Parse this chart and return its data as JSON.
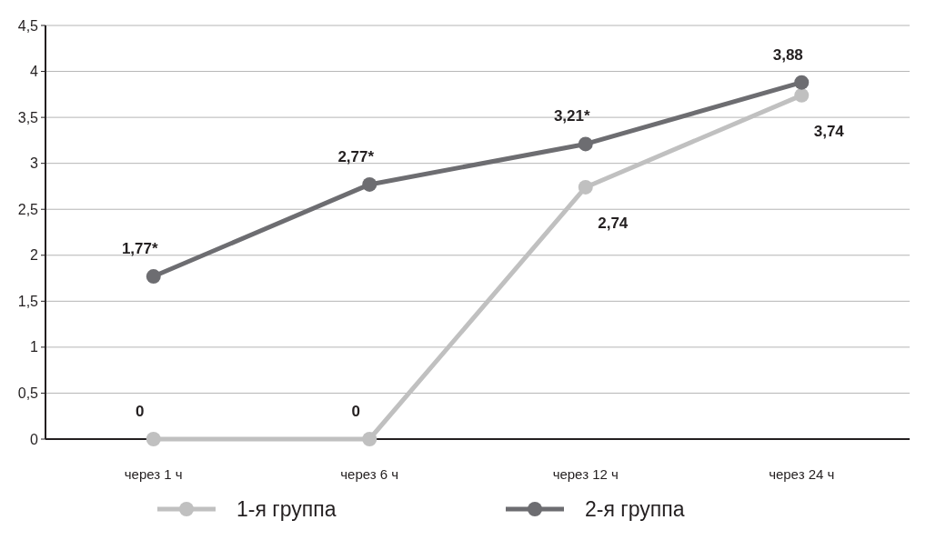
{
  "chart_data": {
    "type": "line",
    "categories": [
      "через 1 ч",
      "через 6 ч",
      "через 12 ч",
      "через 24 ч"
    ],
    "series": [
      {
        "name": "1-я группа",
        "color": "#c0c0c0",
        "values": [
          0,
          0,
          2.74,
          3.74
        ],
        "value_labels": [
          "0",
          "0",
          "2,74",
          "3,74"
        ]
      },
      {
        "name": "2-я группа",
        "color": "#6d6d71",
        "values": [
          1.77,
          2.77,
          3.21,
          3.88
        ],
        "value_labels": [
          "1,77*",
          "2,77*",
          "3,21*",
          "3,88"
        ]
      }
    ],
    "ylim": [
      0,
      4.5
    ],
    "yticks": [
      0,
      {
        "value": 0.5,
        "label": "0,5"
      },
      1,
      {
        "value": 1.5,
        "label": "1,5"
      },
      2,
      {
        "value": 2.5,
        "label": "2,5"
      },
      3,
      {
        "value": 3.5,
        "label": "3,5"
      },
      4,
      {
        "value": 4.5,
        "label": "4,5"
      }
    ],
    "grid": "y",
    "legend": "bottom",
    "marker": "circle",
    "line_style": "solid"
  }
}
